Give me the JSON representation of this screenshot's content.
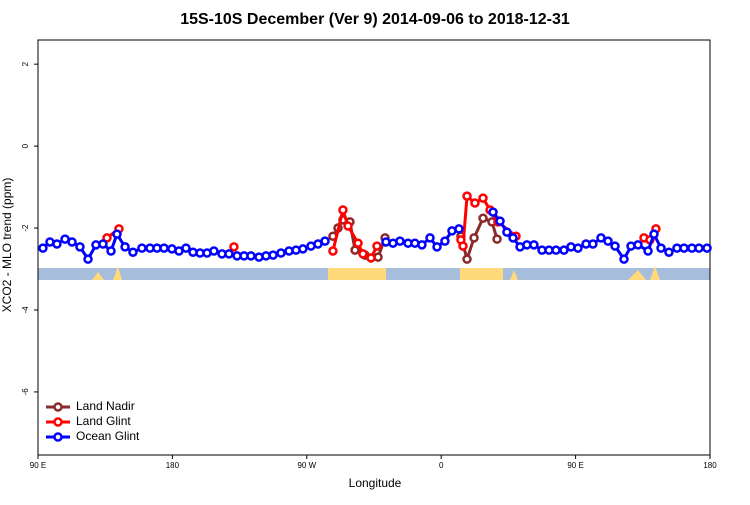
{
  "chart_data": {
    "type": "line",
    "title": "15S-10S December (Ver 9)   2014-09-06 to 2018-12-31",
    "x_label": "Longitude",
    "y_label": "XCO2 - MLO trend (ppm)",
    "xlim": [
      90,
      540
    ],
    "ylim": [
      -7.54,
      2.59
    ],
    "xticks": [
      {
        "value": 90,
        "label": "90 E"
      },
      180,
      {
        "value": 270,
        "label": "90 W"
      },
      {
        "value": 360,
        "label": "0"
      },
      {
        "value": 450,
        "label": "90 E"
      },
      {
        "value": 540,
        "label": "180"
      }
    ],
    "yticks": [
      -6,
      -4,
      -2,
      0,
      2
    ],
    "legend": "bottom-left",
    "series": [
      {
        "name": "Land Nadir",
        "color": "#8b2a2a",
        "x": [
          287.5,
          290.9,
          294.2,
          298.9,
          302.3,
          309.0,
          317.7,
          322.4,
          350,
          373.2,
          377.3,
          382.0,
          388.0,
          394.0,
          397.4
        ],
        "values": [
          -2.2,
          -2.0,
          -1.8,
          -1.85,
          -2.54,
          -2.66,
          -2.71,
          -2.24,
          null,
          -2.2,
          -2.76,
          -2.24,
          -1.76,
          -1.85,
          -2.27
        ]
      },
      {
        "name": "Land Glint",
        "color": "#ff0000",
        "x": [
          136.2,
          144.2,
          180,
          221.2,
          250,
          287.5,
          294.2,
          297.6,
          304.3,
          307.6,
          313.0,
          317.0,
          350,
          373.2,
          374.6,
          377.3,
          382.6,
          388.0,
          392.7,
          398.0,
          410.1,
          450,
          495.8,
          499.8,
          503.8
        ],
        "values": [
          -2.24,
          -2.02,
          null,
          -2.46,
          null,
          -2.56,
          -1.56,
          -1.95,
          -2.37,
          -2.63,
          -2.73,
          -2.44,
          null,
          -2.29,
          -2.44,
          -1.22,
          -1.39,
          -1.27,
          -1.56,
          -1.85,
          -2.2,
          null,
          -2.24,
          -2.29,
          -2.02
        ]
      },
      {
        "name": "Ocean Glint",
        "color": "#0000ff",
        "x": [
          93.3,
          98.0,
          102.7,
          108.1,
          112.8,
          118.1,
          123.5,
          128.8,
          133.5,
          138.9,
          142.9,
          148.3,
          153.6,
          159.6,
          165.0,
          169.7,
          174.4,
          179.7,
          184.4,
          189.1,
          193.8,
          198.5,
          203.2,
          207.8,
          213.2,
          217.9,
          223.3,
          228.0,
          232.6,
          238.0,
          242.7,
          247.4,
          252.7,
          258.1,
          262.8,
          267.4,
          272.8,
          277.5,
          282.2,
          300,
          323.0,
          327.7,
          332.4,
          337.8,
          342.4,
          347.1,
          352.5,
          357.2,
          362.5,
          367.2,
          371.9,
          380,
          394.7,
          399.4,
          404.0,
          408.1,
          412.8,
          417.4,
          422.1,
          427.5,
          432.2,
          436.9,
          442.2,
          446.9,
          451.6,
          457.0,
          461.6,
          467.0,
          471.7,
          476.4,
          482.4,
          487.1,
          491.8,
          498.5,
          502.5,
          507.2,
          512.5,
          517.9,
          522.6,
          527.9,
          532.6,
          538.0
        ],
        "values": [
          -2.49,
          -2.34,
          -2.39,
          -2.27,
          -2.34,
          -2.46,
          -2.76,
          -2.41,
          -2.39,
          -2.56,
          -2.15,
          -2.46,
          -2.59,
          -2.49,
          -2.49,
          -2.49,
          -2.49,
          -2.51,
          -2.56,
          -2.49,
          -2.59,
          -2.61,
          -2.61,
          -2.56,
          -2.63,
          -2.63,
          -2.68,
          -2.68,
          -2.68,
          -2.71,
          -2.68,
          -2.66,
          -2.61,
          -2.56,
          -2.54,
          -2.51,
          -2.44,
          -2.39,
          -2.32,
          null,
          -2.34,
          -2.37,
          -2.32,
          -2.37,
          -2.37,
          -2.41,
          -2.24,
          -2.46,
          -2.32,
          -2.07,
          -2.02,
          null,
          -1.61,
          -1.83,
          -2.1,
          -2.24,
          -2.46,
          -2.41,
          -2.41,
          -2.54,
          -2.54,
          -2.54,
          -2.54,
          -2.46,
          -2.49,
          -2.39,
          -2.39,
          -2.24,
          -2.32,
          -2.44,
          -2.76,
          -2.44,
          -2.41,
          -2.56,
          -2.15,
          -2.49,
          -2.59,
          -2.49,
          -2.49,
          -2.49,
          -2.49,
          -2.49
        ]
      }
    ]
  }
}
